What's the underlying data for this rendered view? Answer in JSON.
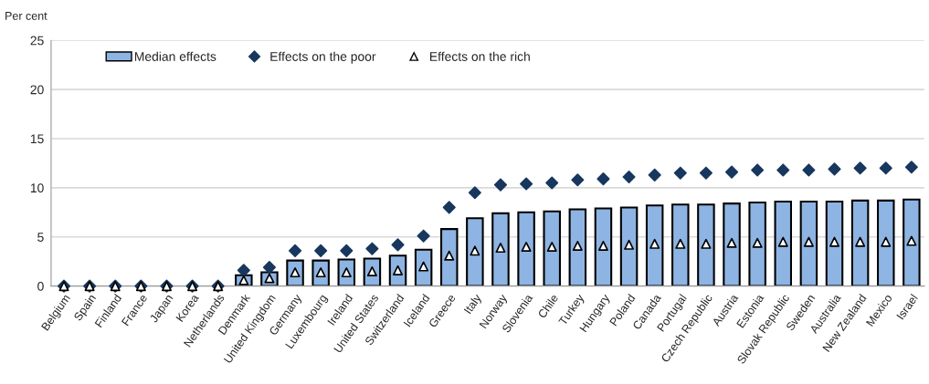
{
  "chart_data": {
    "type": "bar",
    "ylabel": "Per cent",
    "categories": [
      "Belgium",
      "Spain",
      "Finland",
      "France",
      "Japan",
      "Korea",
      "Netherlands",
      "Denmark",
      "United Kingdom",
      "Germany",
      "Luxembourg",
      "Ireland",
      "United States",
      "Switzerland",
      "Iceland",
      "Greece",
      "Italy",
      "Norway",
      "Slovenia",
      "Chile",
      "Turkey",
      "Hungary",
      "Poland",
      "Canada",
      "Portugal",
      "Czech Republic",
      "Austria",
      "Estonia",
      "Slovak Republic",
      "Sweden",
      "Australia",
      "New Zealand",
      "Mexico",
      "Israel"
    ],
    "series": [
      {
        "name": "Median effects",
        "color": "#8db4e2",
        "values": [
          0,
          0,
          0,
          0,
          0,
          0,
          0,
          1.1,
          1.4,
          2.6,
          2.6,
          2.7,
          2.8,
          3.1,
          3.7,
          5.8,
          6.9,
          7.4,
          7.5,
          7.6,
          7.8,
          7.9,
          8.0,
          8.2,
          8.3,
          8.3,
          8.4,
          8.5,
          8.6,
          8.6,
          8.6,
          8.7,
          8.7,
          8.8
        ]
      },
      {
        "name": "Effects on the poor",
        "type": "scatter",
        "marker": "diamond",
        "color": "#17375e",
        "values": [
          0,
          0,
          0,
          0,
          0,
          0,
          0,
          1.6,
          1.9,
          3.6,
          3.6,
          3.6,
          3.8,
          4.2,
          5.1,
          8.0,
          9.5,
          10.3,
          10.4,
          10.5,
          10.8,
          10.9,
          11.1,
          11.3,
          11.5,
          11.5,
          11.6,
          11.8,
          11.8,
          11.8,
          11.9,
          12.0,
          12.0,
          12.1
        ]
      },
      {
        "name": "Effects on the rich",
        "type": "scatter",
        "marker": "triangle",
        "color": "#ffffff",
        "values": [
          0,
          0,
          0,
          0,
          0,
          0,
          0,
          0.6,
          0.8,
          1.4,
          1.4,
          1.4,
          1.5,
          1.6,
          2.0,
          3.1,
          3.6,
          3.9,
          4.0,
          4.0,
          4.1,
          4.1,
          4.2,
          4.3,
          4.3,
          4.3,
          4.4,
          4.4,
          4.5,
          4.5,
          4.5,
          4.5,
          4.5,
          4.6
        ]
      }
    ],
    "ylim": [
      0,
      25
    ],
    "yticks": [
      0,
      5,
      10,
      15,
      20,
      25
    ],
    "grid": "y",
    "legend": "top left"
  }
}
